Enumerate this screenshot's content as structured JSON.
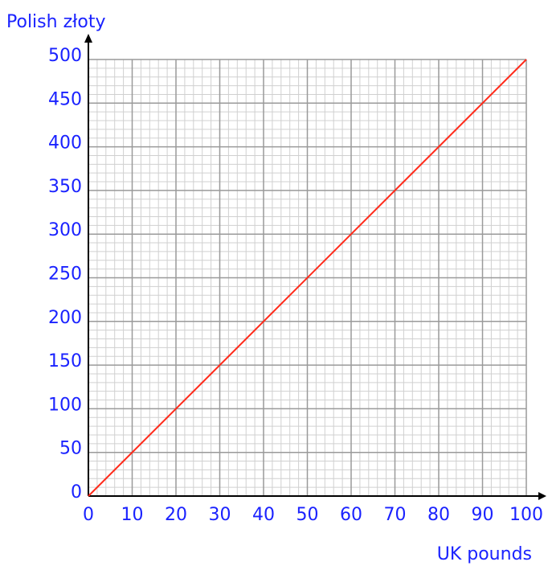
{
  "chart_data": {
    "type": "line",
    "y_label": "Polish złoty",
    "x_label": "UK pounds",
    "x": [
      0,
      100
    ],
    "series": [
      {
        "color": "#ff2a1a",
        "values": [
          0,
          500
        ]
      }
    ],
    "xlim": [
      0,
      100
    ],
    "xticks": [
      0,
      10,
      20,
      30,
      40,
      50,
      60,
      70,
      80,
      90,
      100
    ],
    "ylim": [
      0,
      500
    ],
    "yticks": [
      0,
      50,
      100,
      150,
      200,
      250,
      300,
      350,
      400,
      450,
      500
    ],
    "grid": true
  }
}
